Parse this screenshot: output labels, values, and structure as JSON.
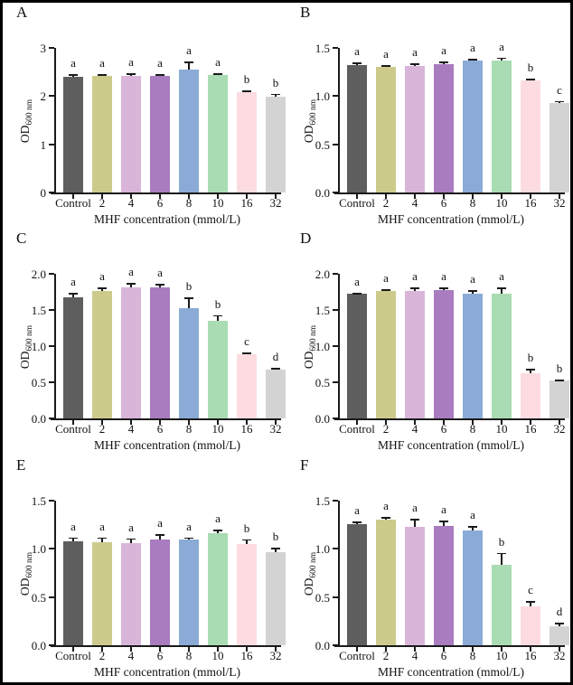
{
  "figure": {
    "background": "#ffffff",
    "border_color": "#000000",
    "axis_color": "#1a1a1a",
    "xlabel": "MHF concentration (mmol/L)",
    "ylabel_base": "OD",
    "ylabel_sub": "600 nm",
    "bar_colors": [
      "#5e5e5e",
      "#cdcb8b",
      "#d9b5da",
      "#a87cbe",
      "#8babd6",
      "#a9dcb2",
      "#fcdce1",
      "#d3d3d3"
    ]
  },
  "chart_data": [
    {
      "panel": "A",
      "type": "bar",
      "categories": [
        "Control",
        "2",
        "4",
        "6",
        "8",
        "10",
        "16",
        "32"
      ],
      "values": [
        2.4,
        2.41,
        2.42,
        2.41,
        2.55,
        2.43,
        2.08,
        1.98
      ],
      "errors": [
        0.06,
        0.05,
        0.05,
        0.04,
        0.17,
        0.05,
        0.03,
        0.07
      ],
      "sig_letters": [
        "a",
        "a",
        "a",
        "a",
        "a",
        "a",
        "b",
        "b"
      ],
      "ylim": [
        0,
        3
      ],
      "ytick_values": [
        0,
        1,
        2,
        3
      ],
      "yticks": [
        "0",
        "1",
        "2",
        "3"
      ],
      "xlabel": "MHF concentration (mmol/L)",
      "ylabel": "OD600 nm",
      "grid": "off",
      "legend": "none"
    },
    {
      "panel": "B",
      "type": "bar",
      "categories": [
        "Control",
        "2",
        "4",
        "6",
        "8",
        "10",
        "16",
        "32"
      ],
      "values": [
        1.32,
        1.3,
        1.31,
        1.33,
        1.37,
        1.37,
        1.16,
        0.93
      ],
      "errors": [
        0.03,
        0.02,
        0.03,
        0.03,
        0.02,
        0.03,
        0.02,
        0.02
      ],
      "sig_letters": [
        "a",
        "a",
        "a",
        "a",
        "a",
        "a",
        "b",
        "c"
      ],
      "ylim": [
        0,
        1.5
      ],
      "ytick_values": [
        0,
        0.5,
        1,
        1.5
      ],
      "yticks": [
        "0.0",
        "0.5",
        "1.0",
        "1.5"
      ],
      "xlabel": "MHF concentration (mmol/L)",
      "ylabel": "OD600 nm",
      "grid": "off",
      "legend": "none"
    },
    {
      "panel": "C",
      "type": "bar",
      "categories": [
        "Control",
        "2",
        "4",
        "6",
        "8",
        "10",
        "16",
        "32"
      ],
      "values": [
        1.68,
        1.76,
        1.81,
        1.81,
        1.52,
        1.35,
        0.89,
        0.68
      ],
      "errors": [
        0.06,
        0.05,
        0.06,
        0.05,
        0.15,
        0.08,
        0.02,
        0.02
      ],
      "sig_letters": [
        "a",
        "a",
        "a",
        "a",
        "b",
        "b",
        "c",
        "d"
      ],
      "ylim": [
        0,
        2
      ],
      "ytick_values": [
        0,
        0.5,
        1,
        1.5,
        2
      ],
      "yticks": [
        "0.0",
        "0.5",
        "1.0",
        "1.5",
        "2.0"
      ],
      "xlabel": "MHF concentration (mmol/L)",
      "ylabel": "OD600 nm",
      "grid": "off",
      "legend": "none"
    },
    {
      "panel": "D",
      "type": "bar",
      "categories": [
        "Control",
        "2",
        "4",
        "6",
        "8",
        "10",
        "16",
        "32"
      ],
      "values": [
        1.72,
        1.76,
        1.76,
        1.77,
        1.72,
        1.72,
        0.62,
        0.52
      ],
      "errors": [
        0.02,
        0.03,
        0.05,
        0.04,
        0.05,
        0.09,
        0.07,
        0.02
      ],
      "sig_letters": [
        "a",
        "a",
        "a",
        "a",
        "a",
        "a",
        "b",
        "b"
      ],
      "ylim": [
        0,
        2
      ],
      "ytick_values": [
        0,
        0.5,
        1,
        1.5,
        2
      ],
      "yticks": [
        "0.0",
        "0.5",
        "1.0",
        "1.5",
        "2.0"
      ],
      "xlabel": "MHF concentration (mmol/L)",
      "ylabel": "OD600 nm",
      "grid": "off",
      "legend": "none"
    },
    {
      "panel": "E",
      "type": "bar",
      "categories": [
        "Control",
        "2",
        "4",
        "6",
        "8",
        "10",
        "16",
        "32"
      ],
      "values": [
        1.08,
        1.07,
        1.06,
        1.1,
        1.1,
        1.16,
        1.05,
        0.97
      ],
      "errors": [
        0.04,
        0.05,
        0.05,
        0.05,
        0.02,
        0.04,
        0.05,
        0.04
      ],
      "sig_letters": [
        "a",
        "a",
        "a",
        "a",
        "a",
        "a",
        "b",
        "b"
      ],
      "ylim": [
        0,
        1.5
      ],
      "ytick_values": [
        0,
        0.5,
        1,
        1.5
      ],
      "yticks": [
        "0.0",
        "0.5",
        "1.0",
        "1.5"
      ],
      "xlabel": "MHF concentration (mmol/L)",
      "ylabel": "OD600 nm",
      "grid": "off",
      "legend": "none"
    },
    {
      "panel": "F",
      "type": "bar",
      "categories": [
        "Control",
        "2",
        "4",
        "6",
        "8",
        "10",
        "16",
        "32"
      ],
      "values": [
        1.26,
        1.3,
        1.23,
        1.24,
        1.19,
        0.83,
        0.4,
        0.2
      ],
      "errors": [
        0.02,
        0.03,
        0.08,
        0.05,
        0.05,
        0.13,
        0.06,
        0.03
      ],
      "sig_letters": [
        "a",
        "a",
        "a",
        "a",
        "a",
        "b",
        "c",
        "d"
      ],
      "ylim": [
        0,
        1.5
      ],
      "ytick_values": [
        0,
        0.5,
        1,
        1.5
      ],
      "yticks": [
        "0.0",
        "0.5",
        "1.0",
        "1.5"
      ],
      "xlabel": "MHF concentration (mmol/L)",
      "ylabel": "OD600 nm",
      "grid": "off",
      "legend": "none"
    }
  ]
}
